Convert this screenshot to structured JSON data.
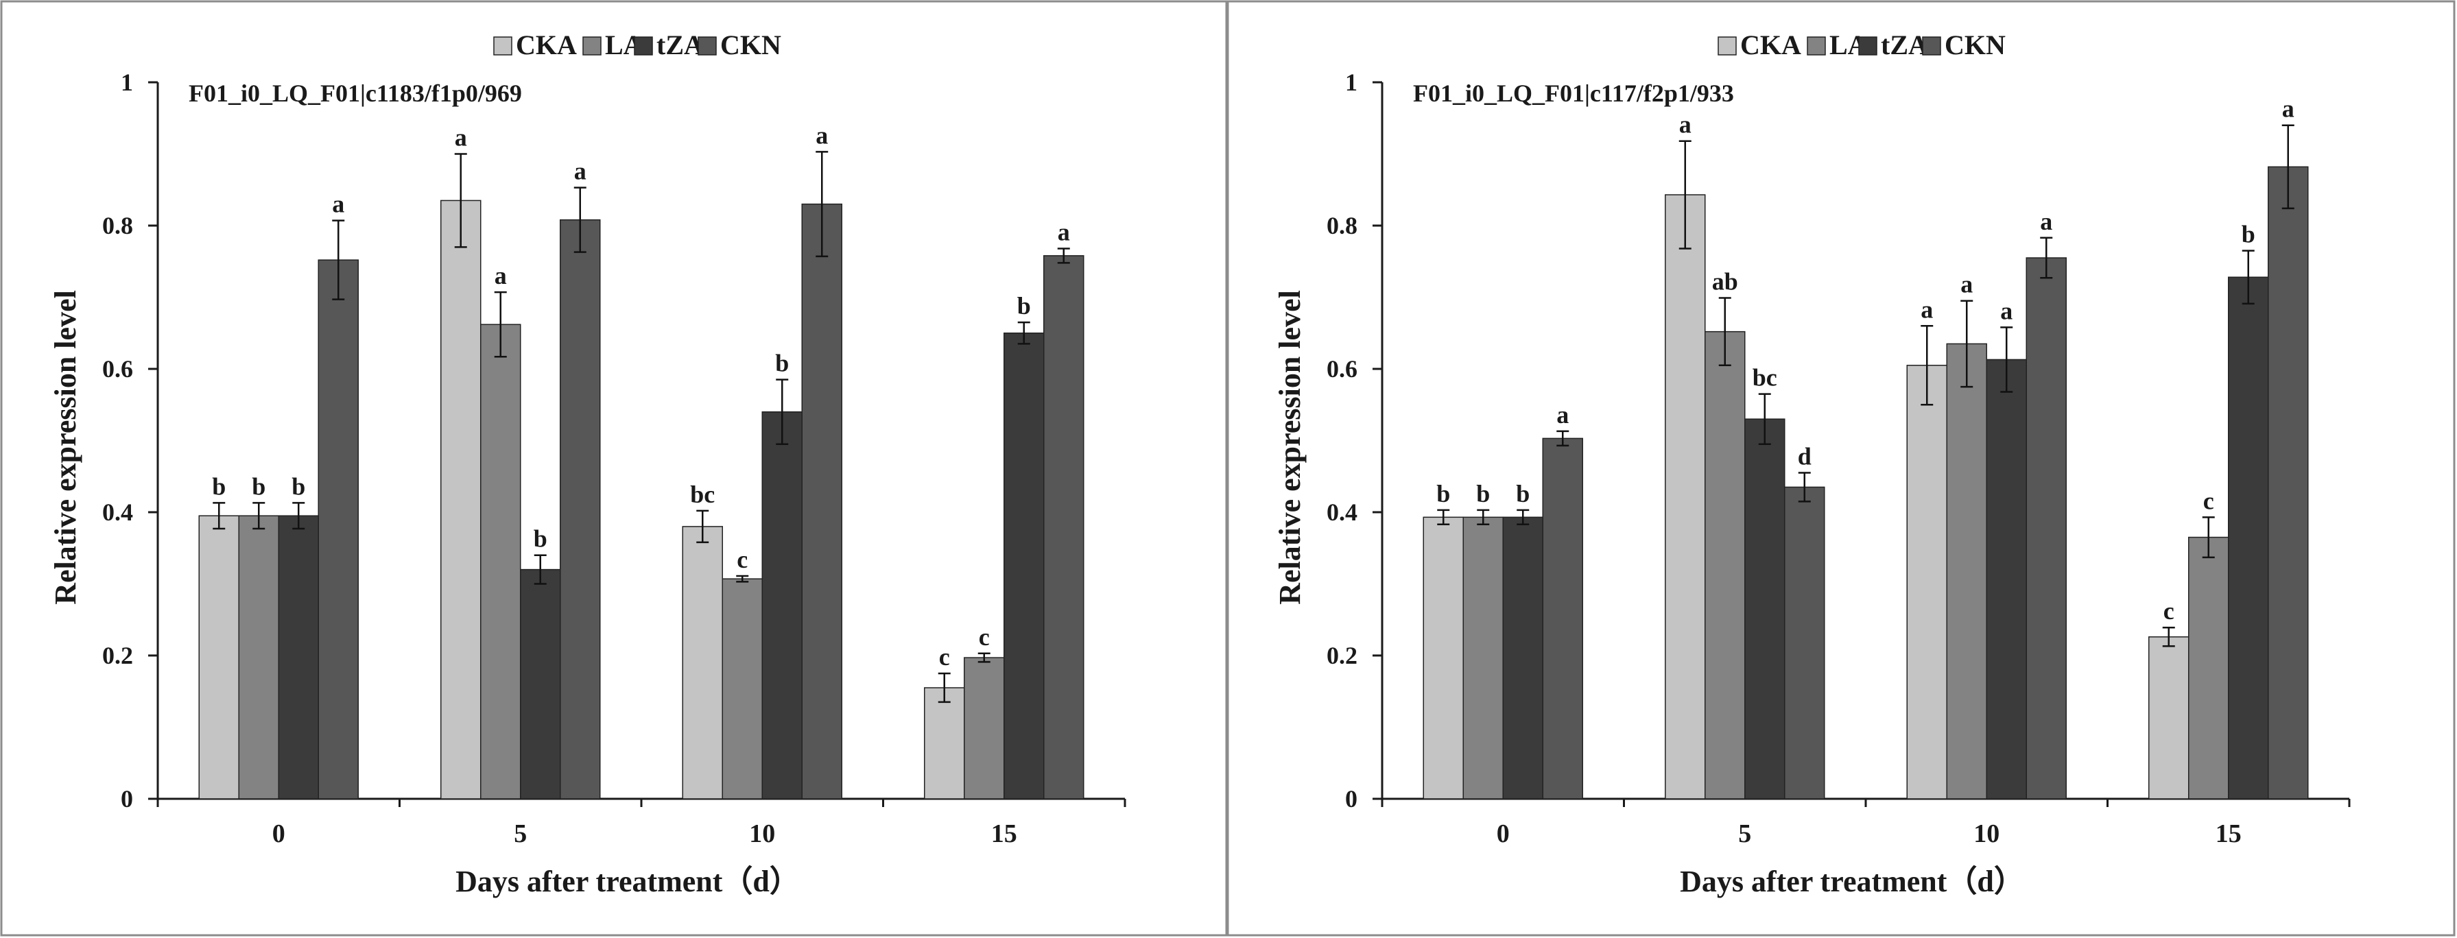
{
  "colors": {
    "CKA": "#c4c4c4",
    "LA": "#838383",
    "tZA": "#3b3b3b",
    "CKN": "#575757",
    "axis": "#1a1a1a",
    "frame": "#8c8c8c"
  },
  "chart_data": [
    {
      "type": "bar",
      "title": "F01_i0_LQ_F01|c1183/f1p0/969",
      "xlabel": "Days after treatment（d）",
      "ylabel": "Relative expression level",
      "ylim": [
        0,
        1
      ],
      "yticks": [
        "0",
        "0.2",
        "0.4",
        "0.6",
        "0.8",
        "1"
      ],
      "categories": [
        "0",
        "5",
        "10",
        "15"
      ],
      "legend": [
        "CKA",
        "LA",
        "tZA",
        "CKN"
      ],
      "legend_position": "top-center",
      "series": [
        {
          "name": "CKA",
          "values": [
            0.395,
            0.835,
            0.38,
            0.155
          ],
          "errors": [
            0.018,
            0.065,
            0.022,
            0.02
          ],
          "labels": [
            "b",
            "a",
            "bc",
            "c"
          ]
        },
        {
          "name": "LA",
          "values": [
            0.395,
            0.662,
            0.307,
            0.197
          ],
          "errors": [
            0.018,
            0.045,
            0.004,
            0.006
          ],
          "labels": [
            "b",
            "a",
            "c",
            "c"
          ]
        },
        {
          "name": "tZA",
          "values": [
            0.395,
            0.32,
            0.54,
            0.65
          ],
          "errors": [
            0.018,
            0.02,
            0.045,
            0.015
          ],
          "labels": [
            "b",
            "b",
            "b",
            "b"
          ]
        },
        {
          "name": "CKN",
          "values": [
            0.752,
            0.808,
            0.83,
            0.758
          ],
          "errors": [
            0.055,
            0.045,
            0.073,
            0.01
          ],
          "labels": [
            "a",
            "a",
            "a",
            "a"
          ]
        }
      ]
    },
    {
      "type": "bar",
      "title": "F01_i0_LQ_F01|c117/f2p1/933",
      "xlabel": "Days after treatment（d）",
      "ylabel": "Relative expression level",
      "ylim": [
        0,
        1
      ],
      "yticks": [
        "0",
        "0.2",
        "0.4",
        "0.6",
        "0.8",
        "1"
      ],
      "categories": [
        "0",
        "5",
        "10",
        "15"
      ],
      "legend": [
        "CKA",
        "LA",
        "tZA",
        "CKN"
      ],
      "legend_position": "top-center",
      "series": [
        {
          "name": "CKA",
          "values": [
            0.393,
            0.843,
            0.605,
            0.226
          ],
          "errors": [
            0.01,
            0.075,
            0.055,
            0.013
          ],
          "labels": [
            "b",
            "a",
            "a",
            "c"
          ]
        },
        {
          "name": "LA",
          "values": [
            0.393,
            0.652,
            0.635,
            0.365
          ],
          "errors": [
            0.01,
            0.047,
            0.06,
            0.028
          ],
          "labels": [
            "b",
            "ab",
            "a",
            "c"
          ]
        },
        {
          "name": "tZA",
          "values": [
            0.393,
            0.53,
            0.613,
            0.728
          ],
          "errors": [
            0.01,
            0.035,
            0.045,
            0.037
          ],
          "labels": [
            "b",
            "bc",
            "a",
            "b"
          ]
        },
        {
          "name": "CKN",
          "values": [
            0.503,
            0.435,
            0.755,
            0.882
          ],
          "errors": [
            0.01,
            0.02,
            0.028,
            0.058
          ],
          "labels": [
            "a",
            "d",
            "a",
            "a"
          ]
        }
      ]
    }
  ]
}
